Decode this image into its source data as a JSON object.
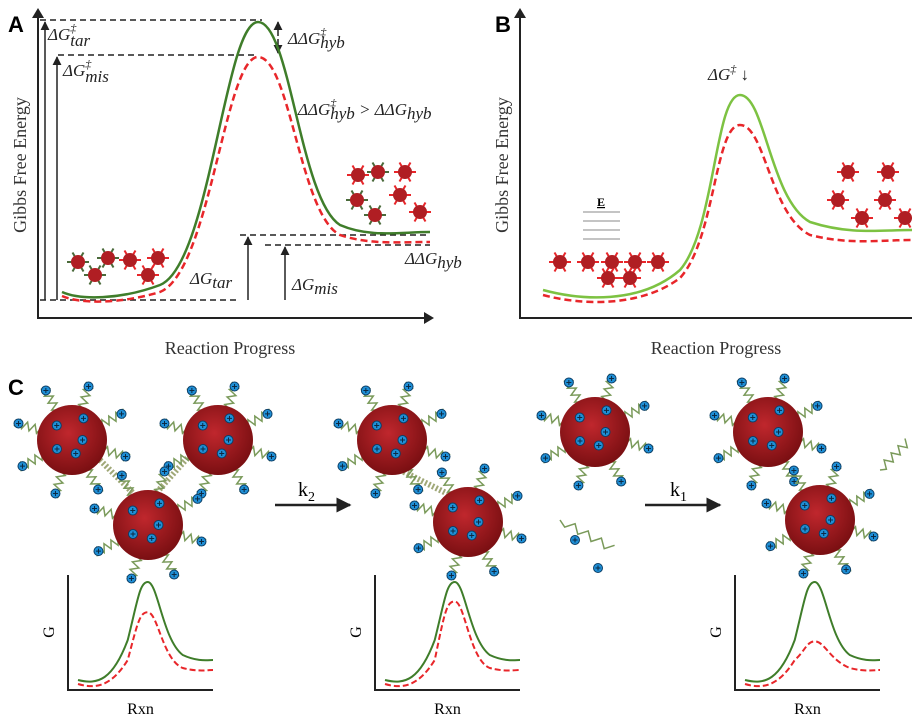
{
  "panel_a": {
    "label": "A",
    "y_axis": "Gibbs Free Energy",
    "x_axis": "Reaction Progress",
    "dg_tar_ts": {
      "main": "ΔG",
      "sup": "‡",
      "sub": "tar"
    },
    "dg_mis_ts": {
      "main": "ΔG",
      "sup": "‡",
      "sub": "mis"
    },
    "ddg_hyb_ts": {
      "main": "ΔΔG",
      "sup": "‡",
      "sub": "hyb"
    },
    "inequality": {
      "left_main": "ΔΔG",
      "left_sup": "‡",
      "left_sub": "hyb",
      "operator": " > ",
      "right_main": "ΔΔG",
      "right_sub": "hyb"
    },
    "ddg_hyb": {
      "main": "ΔΔG",
      "sub": "hyb"
    },
    "dg_tar": {
      "main": "ΔG",
      "sub": "tar"
    },
    "dg_mis": {
      "main": "ΔG",
      "sub": "mis"
    }
  },
  "panel_b": {
    "label": "B",
    "y_axis": "Gibbs Free Energy",
    "x_axis": "Reaction Progress",
    "barrier": {
      "main": "ΔG",
      "sup": "‡",
      "arrow": " ↓"
    },
    "field": "E"
  },
  "panel_c": {
    "label": "C",
    "step1_rate": {
      "main": "k",
      "sub": "2"
    },
    "step2_rate": {
      "main": "k",
      "sub": "1"
    },
    "plots": [
      {
        "y_axis": "G",
        "x_axis": "Rxn"
      },
      {
        "y_axis": "G",
        "x_axis": "Rxn"
      },
      {
        "y_axis": "G",
        "x_axis": "Rxn"
      }
    ]
  }
}
